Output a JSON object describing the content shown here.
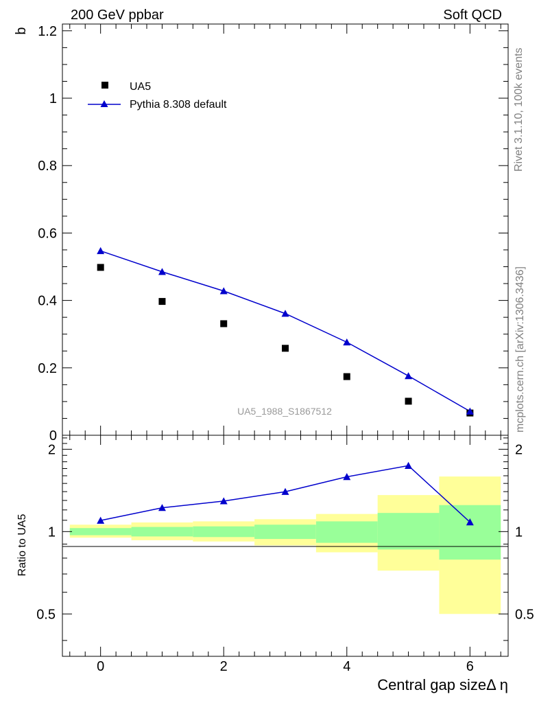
{
  "header": {
    "left_title": "200 GeV ppbar",
    "right_title": "Soft QCD"
  },
  "side_labels": {
    "rivet": "Rivet 3.1.10,  100k events",
    "source": "mcplots.cern.ch [arXiv:1306.3436]"
  },
  "colors": {
    "mc": "#0000cc",
    "data": "#000000",
    "band_inner": "#99ff99",
    "band_outer": "#ffff99"
  },
  "chart_data": [
    {
      "type": "scatter",
      "panel": "main",
      "ylabel": "b",
      "xlim": [
        -0.62,
        6.62
      ],
      "ylim": [
        0,
        1.22
      ],
      "yticks": [
        0,
        0.2,
        0.4,
        0.6,
        0.8,
        1,
        1.2
      ],
      "ytick_labels": [
        "0",
        "0.2",
        "0.4",
        "0.6",
        "0.8",
        "1",
        "1.2"
      ],
      "analysis_label": "UA5_1988_S1867512",
      "legend": {
        "placement": "top-left",
        "entries": [
          "UA5",
          "Pythia 8.308 default"
        ]
      },
      "series": [
        {
          "name": "UA5",
          "marker": "square",
          "x": [
            0,
            1,
            2,
            3,
            4,
            5,
            6
          ],
          "y": [
            0.498,
            0.397,
            0.331,
            0.258,
            0.174,
            0.101,
            0.066
          ]
        },
        {
          "name": "Pythia 8.308 default",
          "marker": "triangle",
          "x": [
            0,
            1,
            2,
            3,
            4,
            5,
            6
          ],
          "y": [
            0.547,
            0.485,
            0.428,
            0.361,
            0.276,
            0.176,
            0.071
          ]
        }
      ]
    },
    {
      "type": "line",
      "panel": "ratio",
      "ylabel": "Ratio to UA5",
      "xlabel": "Central gap sizeΔ η",
      "xlim": [
        -0.62,
        6.62
      ],
      "ylim": [
        0.35,
        2.25
      ],
      "yticks": [
        0.5,
        1,
        2
      ],
      "ytick_labels": [
        "0.5",
        "1",
        "2"
      ],
      "xticks": [
        0,
        2,
        4,
        6
      ],
      "xtick_labels": [
        "0",
        "2",
        "4",
        "6"
      ],
      "series": [
        {
          "name": "Pythia 8.308 default",
          "marker": "triangle",
          "x": [
            0,
            1,
            2,
            3,
            4,
            5,
            6
          ],
          "y": [
            1.098,
            1.222,
            1.293,
            1.399,
            1.586,
            1.742,
            1.083
          ]
        }
      ],
      "bands": {
        "x_edges": [
          [
            -0.5,
            0.5
          ],
          [
            0.5,
            1.5
          ],
          [
            1.5,
            2.5
          ],
          [
            2.5,
            3.5
          ],
          [
            3.5,
            4.5
          ],
          [
            4.5,
            5.5
          ],
          [
            5.5,
            6.5
          ]
        ],
        "inner": [
          [
            0.97,
            1.03
          ],
          [
            0.96,
            1.04
          ],
          [
            0.955,
            1.045
          ],
          [
            0.94,
            1.06
          ],
          [
            0.91,
            1.09
          ],
          [
            0.86,
            1.17
          ],
          [
            0.79,
            1.25
          ]
        ],
        "outer": [
          [
            0.95,
            1.06
          ],
          [
            0.93,
            1.08
          ],
          [
            0.92,
            1.09
          ],
          [
            0.89,
            1.11
          ],
          [
            0.84,
            1.16
          ],
          [
            0.72,
            1.36
          ],
          [
            0.5,
            1.59
          ]
        ]
      }
    }
  ]
}
